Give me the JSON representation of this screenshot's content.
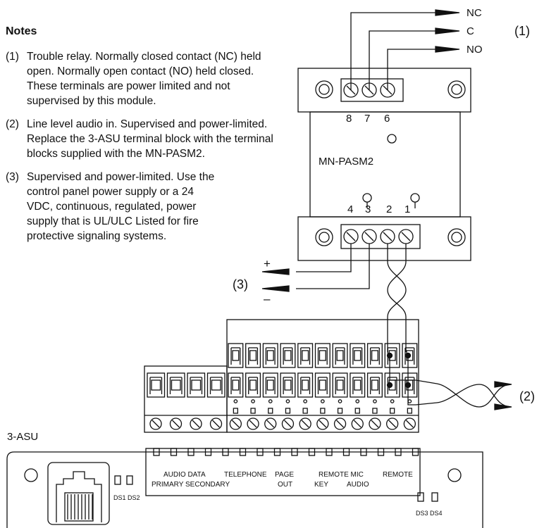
{
  "notes": {
    "heading": "Notes",
    "items": [
      {
        "num": "(1)",
        "text": "Trouble relay. Normally closed contact (NC) held open. Normally open contact (NO) held closed. These terminals are power limited and not supervised by this module."
      },
      {
        "num": "(2)",
        "text": "Line level audio in. Supervised and power-limited. Replace the 3-ASU terminal block with the terminal blocks supplied with the MN-PASM2."
      },
      {
        "num": "(3)",
        "text": "Supervised and power-limited. Use the control panel power supply or a 24 VDC, continuous, regulated, power supply that is UL/ULC Listed for fire protective signaling systems."
      }
    ]
  },
  "relay": {
    "nc": "NC",
    "c": "C",
    "no": "NO",
    "callout": "(1)"
  },
  "module": {
    "name": "MN-PASM2",
    "top_terminals": [
      "8",
      "7",
      "6"
    ],
    "bottom_terminals": [
      "4",
      "3",
      "2",
      "1"
    ]
  },
  "power": {
    "callout": "(3)",
    "plus": "+",
    "minus": "–"
  },
  "audio": {
    "callout": "(2)"
  },
  "board": {
    "name": "3-ASU",
    "labels": {
      "audio_data": "AUDIO DATA",
      "primary_secondary": "PRIMARY SECONDARY",
      "telephone": "TELEPHONE",
      "page": "PAGE",
      "out": "OUT",
      "remote_mic": "REMOTE MIC",
      "key": "KEY",
      "audio": "AUDIO",
      "remote": "REMOTE",
      "ds1_ds2": "DS1 DS2",
      "ds3_ds4": "DS3 DS4"
    }
  }
}
